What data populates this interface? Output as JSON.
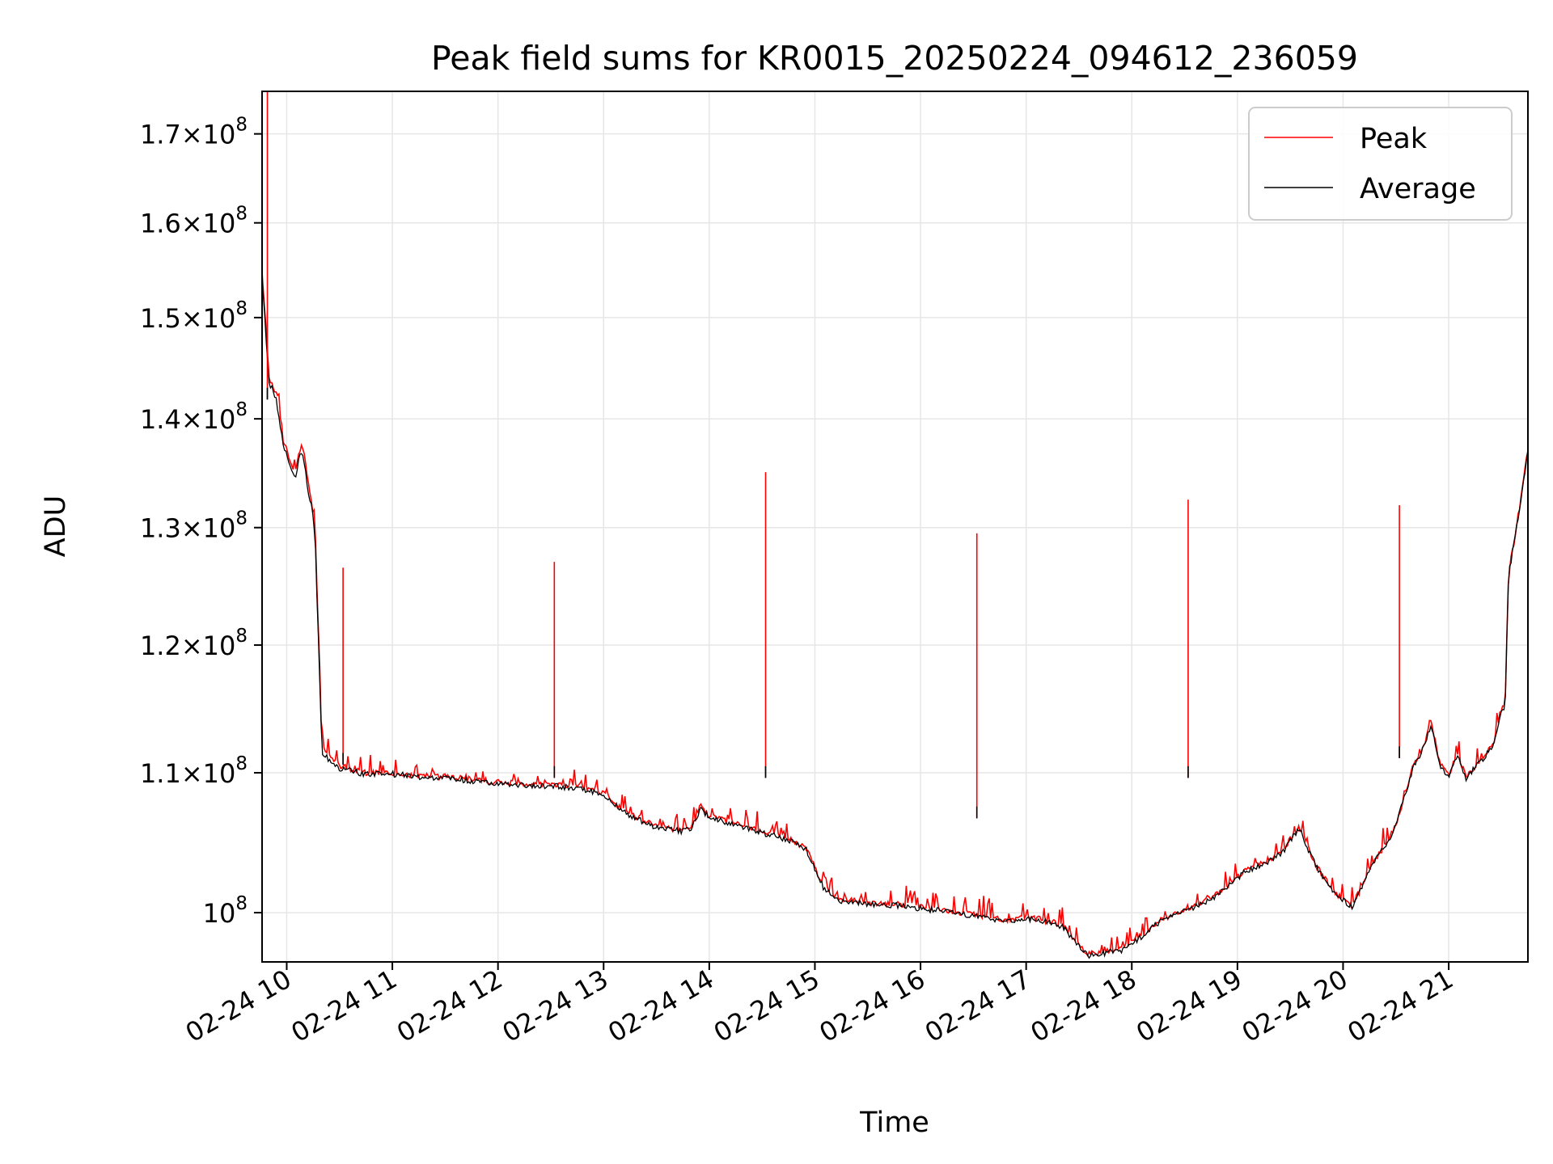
{
  "chart_data": {
    "type": "line",
    "title": "Peak field sums for KR0015_20250224_094612_236059",
    "xlabel": "Time",
    "ylabel": "ADU",
    "y_scale": "log",
    "grid": true,
    "legend_position": "top-right",
    "xlim": [
      "2025-02-24 09:46",
      "2025-02-24 21:45"
    ],
    "ylim": [
      96700000,
      175000000
    ],
    "x_ticks": [
      {
        "value": "2025-02-24 10:00",
        "label": "02-24 10"
      },
      {
        "value": "2025-02-24 11:00",
        "label": "02-24 11"
      },
      {
        "value": "2025-02-24 12:00",
        "label": "02-24 12"
      },
      {
        "value": "2025-02-24 13:00",
        "label": "02-24 13"
      },
      {
        "value": "2025-02-24 14:00",
        "label": "02-24 14"
      },
      {
        "value": "2025-02-24 15:00",
        "label": "02-24 15"
      },
      {
        "value": "2025-02-24 16:00",
        "label": "02-24 16"
      },
      {
        "value": "2025-02-24 17:00",
        "label": "02-24 17"
      },
      {
        "value": "2025-02-24 18:00",
        "label": "02-24 18"
      },
      {
        "value": "2025-02-24 19:00",
        "label": "02-24 19"
      },
      {
        "value": "2025-02-24 20:00",
        "label": "02-24 20"
      },
      {
        "value": "2025-02-24 21:00",
        "label": "02-24 21"
      }
    ],
    "y_ticks": [
      {
        "value": 100000000,
        "mant": "",
        "exp": "8"
      },
      {
        "value": 110000000,
        "mant": "1.1",
        "exp": "8"
      },
      {
        "value": 120000000,
        "mant": "1.2",
        "exp": "8"
      },
      {
        "value": 130000000,
        "mant": "1.3",
        "exp": "8"
      },
      {
        "value": 140000000,
        "mant": "1.4",
        "exp": "8"
      },
      {
        "value": 150000000,
        "mant": "1.5",
        "exp": "8"
      },
      {
        "value": 160000000,
        "mant": "1.6",
        "exp": "8"
      },
      {
        "value": 170000000,
        "mant": "1.7",
        "exp": "8"
      }
    ],
    "series": [
      {
        "name": "Peak",
        "color": "#ff0000",
        "x": [
          "2025-02-24 09:46",
          "2025-02-24 09:47",
          "2025-02-24 09:50",
          "2025-02-24 09:54",
          "2025-02-24 09:58",
          "2025-02-24 10:02",
          "2025-02-24 10:05",
          "2025-02-24 10:08",
          "2025-02-24 10:10",
          "2025-02-24 10:12",
          "2025-02-24 10:14",
          "2025-02-24 10:16",
          "2025-02-24 10:20",
          "2025-02-24 10:30",
          "2025-02-24 10:45",
          "2025-02-24 11:00",
          "2025-02-24 11:15",
          "2025-02-24 11:30",
          "2025-02-24 11:45",
          "2025-02-24 12:00",
          "2025-02-24 12:30",
          "2025-02-24 12:45",
          "2025-02-24 13:00",
          "2025-02-24 13:10",
          "2025-02-24 13:30",
          "2025-02-24 13:45",
          "2025-02-24 13:50",
          "2025-02-24 13:55",
          "2025-02-24 14:00",
          "2025-02-24 14:15",
          "2025-02-24 14:30",
          "2025-02-24 14:45",
          "2025-02-24 14:55",
          "2025-02-24 15:05",
          "2025-02-24 15:15",
          "2025-02-24 15:30",
          "2025-02-24 15:45",
          "2025-02-24 16:00",
          "2025-02-24 16:30",
          "2025-02-24 16:50",
          "2025-02-24 16:35",
          "2025-02-24 17:00",
          "2025-02-24 17:10",
          "2025-02-24 17:20",
          "2025-02-24 17:35",
          "2025-02-24 17:45",
          "2025-02-24 17:55",
          "2025-02-24 18:05",
          "2025-02-24 18:15",
          "2025-02-24 18:30",
          "2025-02-24 18:45",
          "2025-02-24 18:55",
          "2025-02-24 19:05",
          "2025-02-24 19:15",
          "2025-02-24 19:25",
          "2025-02-24 19:35",
          "2025-02-24 19:45",
          "2025-02-24 19:55",
          "2025-02-24 20:05",
          "2025-02-24 20:10",
          "2025-02-24 20:15",
          "2025-02-24 20:25",
          "2025-02-24 20:30",
          "2025-02-24 20:40",
          "2025-02-24 20:45",
          "2025-02-24 20:50",
          "2025-02-24 20:55",
          "2025-02-24 21:00",
          "2025-02-24 21:05",
          "2025-02-24 21:10",
          "2025-02-24 21:15",
          "2025-02-24 21:25",
          "2025-02-24 21:30",
          "2025-02-24 21:32",
          "2025-02-24 21:34",
          "2025-02-24 21:38",
          "2025-02-24 21:45"
        ],
        "y": [
          154500000,
          152000000,
          144000000,
          142500000,
          138000000,
          136000000,
          135000000,
          137500000,
          136500000,
          134000000,
          132500000,
          130000000,
          112000000,
          110500000,
          110000000,
          110000000,
          109800000,
          109700000,
          109500000,
          109300000,
          109100000,
          109000000,
          108500000,
          107300000,
          106000000,
          105800000,
          106000000,
          107500000,
          106800000,
          106300000,
          105700000,
          105200000,
          104500000,
          101800000,
          100900000,
          100700000,
          100600000,
          100400000,
          99900000,
          99500000,
          99800000,
          99700000,
          99500000,
          99200000,
          97200000,
          97400000,
          97600000,
          98400000,
          99400000,
          100200000,
          101000000,
          101900000,
          103000000,
          103500000,
          104200000,
          106000000,
          103200000,
          101400000,
          100500000,
          101600000,
          103000000,
          105000000,
          106200000,
          110500000,
          111800000,
          113800000,
          110700000,
          109700000,
          111500000,
          109600000,
          110500000,
          112000000,
          115000000,
          115000000,
          126000000,
          129500000,
          137000000
        ]
      },
      {
        "name": "Average",
        "color": "#000000",
        "x": [
          "2025-02-24 09:46",
          "2025-02-24 09:47",
          "2025-02-24 09:50",
          "2025-02-24 09:54",
          "2025-02-24 09:58",
          "2025-02-24 10:02",
          "2025-02-24 10:05",
          "2025-02-24 10:08",
          "2025-02-24 10:10",
          "2025-02-24 10:12",
          "2025-02-24 10:14",
          "2025-02-24 10:16",
          "2025-02-24 10:20",
          "2025-02-24 10:30",
          "2025-02-24 10:45",
          "2025-02-24 11:00",
          "2025-02-24 11:15",
          "2025-02-24 11:30",
          "2025-02-24 11:45",
          "2025-02-24 12:00",
          "2025-02-24 12:30",
          "2025-02-24 12:45",
          "2025-02-24 13:00",
          "2025-02-24 13:10",
          "2025-02-24 13:30",
          "2025-02-24 13:45",
          "2025-02-24 13:50",
          "2025-02-24 13:55",
          "2025-02-24 14:00",
          "2025-02-24 14:15",
          "2025-02-24 14:30",
          "2025-02-24 14:45",
          "2025-02-24 14:55",
          "2025-02-24 15:05",
          "2025-02-24 15:15",
          "2025-02-24 15:30",
          "2025-02-24 15:45",
          "2025-02-24 16:00",
          "2025-02-24 16:30",
          "2025-02-24 16:50",
          "2025-02-24 16:35",
          "2025-02-24 17:00",
          "2025-02-24 17:10",
          "2025-02-24 17:20",
          "2025-02-24 17:35",
          "2025-02-24 17:45",
          "2025-02-24 17:55",
          "2025-02-24 18:05",
          "2025-02-24 18:15",
          "2025-02-24 18:30",
          "2025-02-24 18:45",
          "2025-02-24 18:55",
          "2025-02-24 19:05",
          "2025-02-24 19:15",
          "2025-02-24 19:25",
          "2025-02-24 19:35",
          "2025-02-24 19:45",
          "2025-02-24 19:55",
          "2025-02-24 20:05",
          "2025-02-24 20:10",
          "2025-02-24 20:15",
          "2025-02-24 20:25",
          "2025-02-24 20:30",
          "2025-02-24 20:40",
          "2025-02-24 20:45",
          "2025-02-24 20:50",
          "2025-02-24 20:55",
          "2025-02-24 21:00",
          "2025-02-24 21:05",
          "2025-02-24 21:10",
          "2025-02-24 21:15",
          "2025-02-24 21:25",
          "2025-02-24 21:30",
          "2025-02-24 21:32",
          "2025-02-24 21:34",
          "2025-02-24 21:38",
          "2025-02-24 21:45"
        ],
        "y": [
          154000000,
          151500000,
          143500000,
          142000000,
          137500000,
          135500000,
          134500000,
          137000000,
          136000000,
          133500000,
          132000000,
          129500000,
          111500000,
          110300000,
          109900000,
          109900000,
          109700000,
          109600000,
          109400000,
          109200000,
          109000000,
          108900000,
          108400000,
          107200000,
          105900000,
          105700000,
          105900000,
          107400000,
          106700000,
          106200000,
          105600000,
          105100000,
          104400000,
          101700000,
          100800000,
          100600000,
          100500000,
          100300000,
          99800000,
          99400000,
          99700000,
          99600000,
          99400000,
          99100000,
          97100000,
          97300000,
          97500000,
          98300000,
          99300000,
          100100000,
          100900000,
          101800000,
          102900000,
          103400000,
          104100000,
          105900000,
          103100000,
          101300000,
          100400000,
          101500000,
          102900000,
          104900000,
          106100000,
          110400000,
          111700000,
          113700000,
          110600000,
          109600000,
          111400000,
          109500000,
          110400000,
          111900000,
          114900000,
          114900000,
          125900000,
          129400000,
          136900000
        ]
      }
    ],
    "spikes": [
      {
        "x": "2025-02-24 09:49",
        "peak": 175000000,
        "average": 143000000
      },
      {
        "x": "2025-02-24 10:32",
        "peak": 126500000,
        "average": 111500000
      },
      {
        "x": "2025-02-24 12:32",
        "peak": 127000000,
        "average": 110500000
      },
      {
        "x": "2025-02-24 14:32",
        "peak": 135000000,
        "average": 110500000
      },
      {
        "x": "2025-02-24 16:32",
        "peak": 129500000,
        "average": 107500000
      },
      {
        "x": "2025-02-24 18:32",
        "peak": 132500000,
        "average": 110500000
      },
      {
        "x": "2025-02-24 20:32",
        "peak": 132000000,
        "average": 112000000
      }
    ]
  }
}
